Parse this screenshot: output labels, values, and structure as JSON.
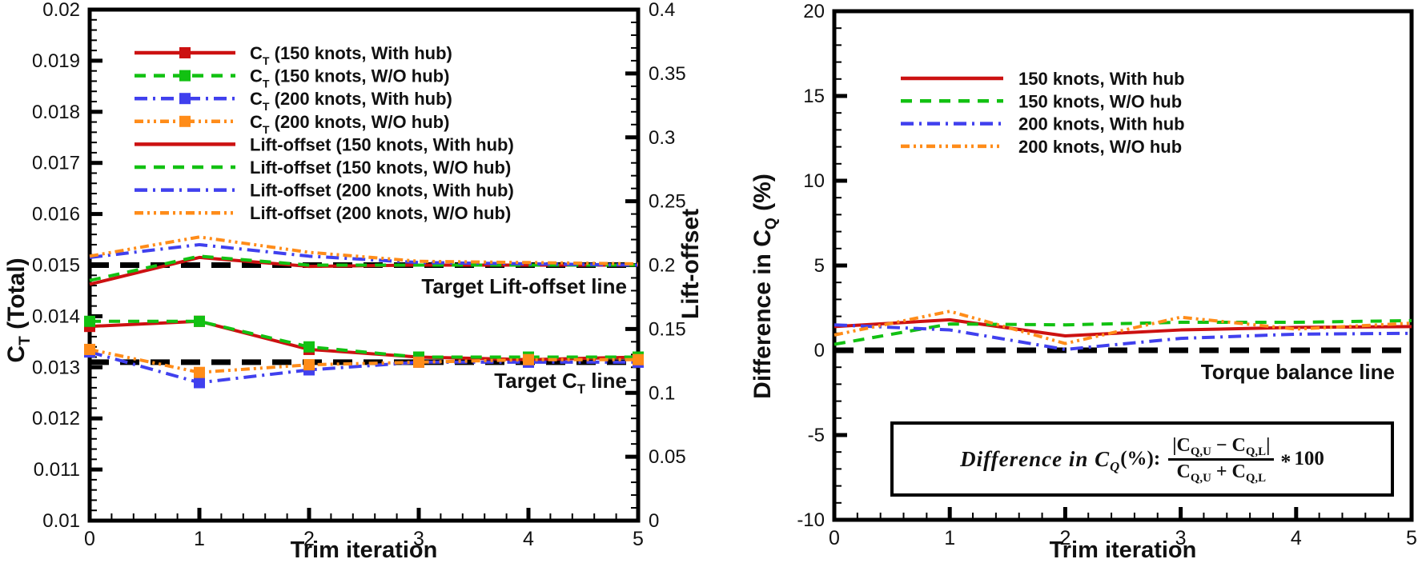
{
  "page": {
    "background": "#ffffff",
    "frame_color": "#000000",
    "text_color": "#111111"
  },
  "colors": {
    "red": "#cc1111",
    "green": "#12c112",
    "blue": "#4040ee",
    "orange": "#ff8c19",
    "ref_black": "#000000"
  },
  "chart_data": [
    {
      "type": "line",
      "xlabel": "Trim iteration",
      "ylabel_left": "C_{T} (Total)",
      "ylabel_right": "Lift-offset",
      "xlim": [
        0,
        5
      ],
      "x_tick_labels": [
        "0",
        "1",
        "2",
        "3",
        "4",
        "5"
      ],
      "x_minor_step": 0.2,
      "grid": "off",
      "legend_position": "upper-left-inside",
      "y_left": {
        "lim": [
          0.01,
          0.02
        ],
        "ticks": [
          0.01,
          0.011,
          0.012,
          0.013,
          0.014,
          0.015,
          0.016,
          0.017,
          0.018,
          0.019,
          0.02
        ],
        "labels": [
          "0.01",
          "0.011",
          "0.012",
          "0.013",
          "0.014",
          "0.015",
          "0.016",
          "0.017",
          "0.018",
          "0.019",
          "0.02"
        ],
        "minor_step": 0.0002
      },
      "y_right": {
        "lim": [
          0,
          0.4
        ],
        "ticks": [
          0,
          0.05,
          0.1,
          0.15,
          0.2,
          0.25,
          0.3,
          0.35,
          0.4
        ],
        "labels": [
          "0",
          "0.05",
          "0.1",
          "0.15",
          "0.2",
          "0.25",
          "0.3",
          "0.35",
          "0.4"
        ],
        "minor_step": 0.01
      },
      "x": [
        0,
        1,
        2,
        3,
        4,
        5
      ],
      "series": [
        {
          "name": "C_{T} (150 knots, With hub)",
          "color": "#cc1111",
          "style": "solid",
          "marker": true,
          "axis": "left",
          "values": [
            0.0138,
            0.0139,
            0.01335,
            0.0132,
            0.01315,
            0.0132
          ]
        },
        {
          "name": "C_{T} (150 knots, W/O hub)",
          "color": "#12c112",
          "style": "dash",
          "marker": true,
          "axis": "left",
          "values": [
            0.0139,
            0.0139,
            0.0134,
            0.0132,
            0.0132,
            0.0132
          ]
        },
        {
          "name": "C_{T} (200 knots, With hub)",
          "color": "#4040ee",
          "style": "dashdot",
          "marker": true,
          "axis": "left",
          "values": [
            0.0133,
            0.0127,
            0.01295,
            0.0131,
            0.0131,
            0.0131
          ]
        },
        {
          "name": "C_{T} (200 knots, W/O hub)",
          "color": "#ff8c19",
          "style": "dashdotdot",
          "marker": true,
          "axis": "left",
          "values": [
            0.01335,
            0.0129,
            0.01305,
            0.0131,
            0.01315,
            0.01315
          ]
        },
        {
          "name": "Lift-offset (150 knots, With hub)",
          "color": "#cc1111",
          "style": "solid",
          "marker": false,
          "axis": "right",
          "values": [
            0.185,
            0.206,
            0.199,
            0.2,
            0.2,
            0.2
          ]
        },
        {
          "name": "Lift-offset (150 knots, W/O hub)",
          "color": "#12c112",
          "style": "dash",
          "marker": false,
          "axis": "right",
          "values": [
            0.188,
            0.207,
            0.2,
            0.2,
            0.2,
            0.2
          ]
        },
        {
          "name": "Lift-offset (200 knots, With hub)",
          "color": "#4040ee",
          "style": "dashdot",
          "marker": false,
          "axis": "right",
          "values": [
            0.206,
            0.216,
            0.207,
            0.202,
            0.201,
            0.2
          ]
        },
        {
          "name": "Lift-offset (200 knots, W/O hub)",
          "color": "#ff8c19",
          "style": "dashdotdot",
          "marker": false,
          "axis": "right",
          "values": [
            0.207,
            0.222,
            0.21,
            0.203,
            0.202,
            0.201
          ]
        }
      ],
      "ref_lines": [
        {
          "axis": "right",
          "value": 0.2,
          "label": "Target Lift-offset line"
        },
        {
          "axis": "left",
          "value": 0.0131,
          "label": "Target C_{T} line"
        }
      ]
    },
    {
      "type": "line",
      "xlabel": "Trim iteration",
      "ylabel": "Difference in C_{Q} (%)",
      "xlim": [
        0,
        5
      ],
      "x_tick_labels": [
        "0",
        "1",
        "2",
        "3",
        "4",
        "5"
      ],
      "x_minor_step": 0.2,
      "grid": "off",
      "legend_position": "upper-left-inside",
      "y": {
        "lim": [
          -10,
          20
        ],
        "ticks": [
          -10,
          -5,
          0,
          5,
          10,
          15,
          20
        ],
        "labels": [
          "-10",
          "-5",
          "0",
          "5",
          "10",
          "15",
          "20"
        ],
        "minor_step": 1
      },
      "x": [
        0,
        1,
        2,
        3,
        4,
        5
      ],
      "series": [
        {
          "name": "150 knots, With hub",
          "color": "#cc1111",
          "style": "solid",
          "marker": false,
          "axis": "left",
          "values": [
            1.4,
            1.8,
            0.85,
            1.2,
            1.35,
            1.4
          ]
        },
        {
          "name": "150 knots, W/O hub",
          "color": "#12c112",
          "style": "dash",
          "marker": false,
          "axis": "left",
          "values": [
            0.35,
            1.55,
            1.5,
            1.65,
            1.65,
            1.75
          ]
        },
        {
          "name": "200 knots, With hub",
          "color": "#4040ee",
          "style": "dashdot",
          "marker": false,
          "axis": "left",
          "values": [
            1.5,
            1.2,
            0.05,
            0.7,
            0.95,
            1.0
          ]
        },
        {
          "name": "200 knots, W/O hub",
          "color": "#ff8c19",
          "style": "dashdotdot",
          "marker": false,
          "axis": "left",
          "values": [
            0.9,
            2.3,
            0.4,
            1.95,
            1.25,
            1.6
          ]
        }
      ],
      "ref_lines": [
        {
          "axis": "left",
          "value": 0,
          "label": "Torque balance line"
        }
      ],
      "formula": {
        "lead": "Difference in C_{Q}",
        "lead2": "(%):",
        "numerator": "|C_{Q,U} − C_{Q,L}|",
        "denominator": "C_{Q,U} + C_{Q,L}",
        "star": "*",
        "mult": "100"
      }
    }
  ]
}
